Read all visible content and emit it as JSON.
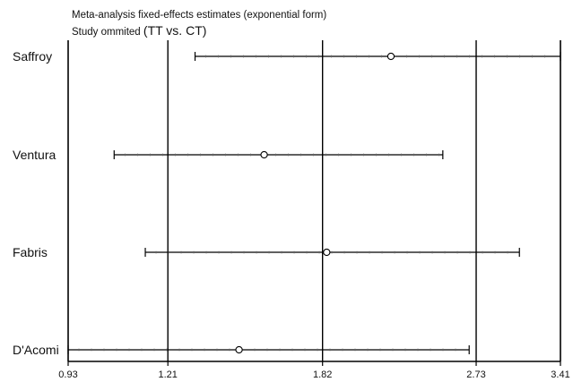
{
  "chart_data": {
    "type": "forest",
    "title": "Meta-analysis fixed-effects estimates (exponential form)",
    "subtitle_prefix": "Study ommited",
    "subtitle_suffix": "(TT vs. CT)",
    "x_ticks": [
      "0.93",
      "1.21",
      "1.82",
      "2.73",
      "3.41"
    ],
    "x_tick_values": [
      0.93,
      1.21,
      1.82,
      2.73,
      3.41
    ],
    "reference_lines": [
      1.21,
      1.82,
      2.73
    ],
    "xlim": [
      0.93,
      3.41
    ],
    "xscale": "log",
    "studies": [
      {
        "name": "Saffroy",
        "estimate": 2.18,
        "lower": 1.3,
        "upper": 3.41
      },
      {
        "name": "Ventura",
        "estimate": 1.56,
        "lower": 1.05,
        "upper": 2.5
      },
      {
        "name": "Fabris",
        "estimate": 1.84,
        "lower": 1.14,
        "upper": 3.06
      },
      {
        "name": "D'Acomi",
        "estimate": 1.46,
        "lower": 0.93,
        "upper": 2.68
      }
    ]
  }
}
